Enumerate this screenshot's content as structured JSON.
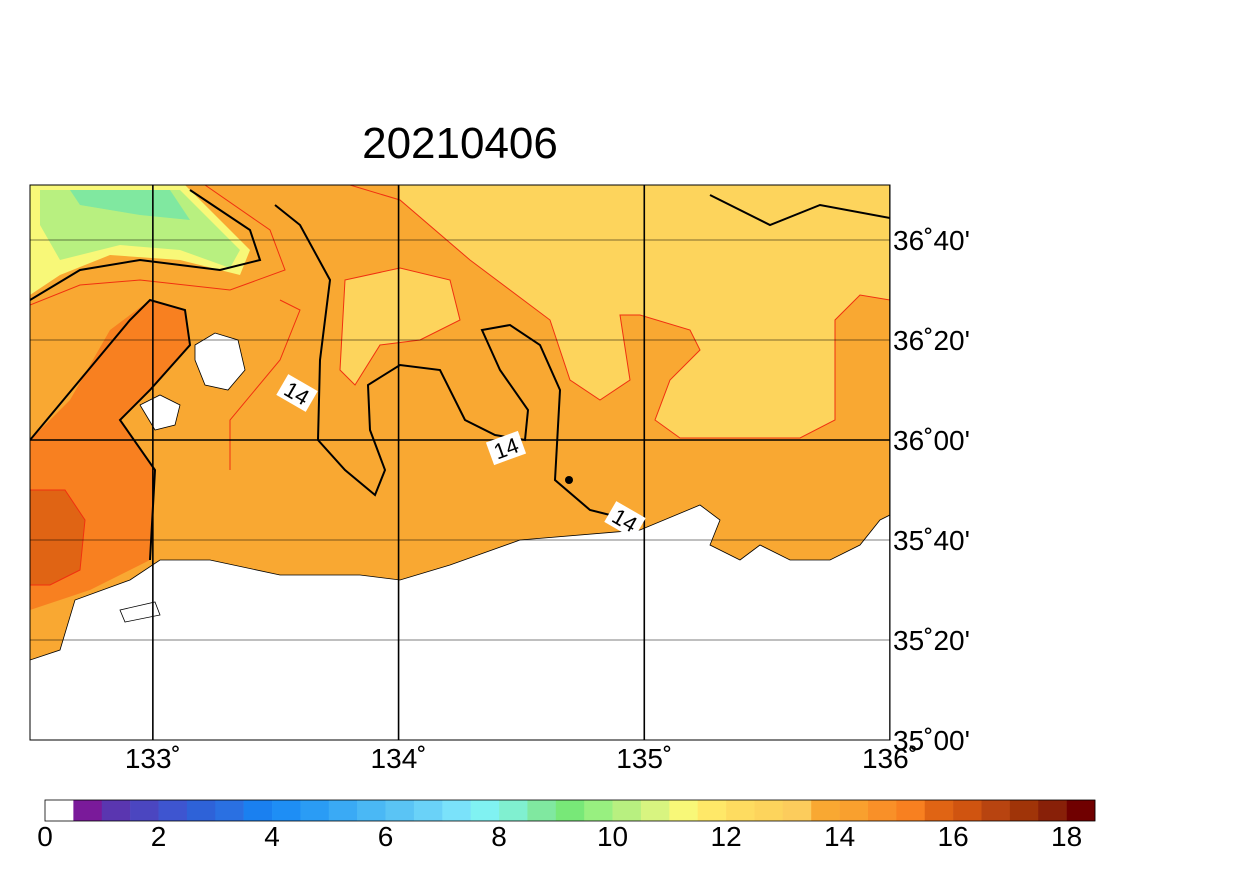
{
  "map": {
    "title": "20210406",
    "lonlim": [
      132.5,
      136
    ],
    "latlim": [
      35,
      36.85
    ],
    "lonticks": [
      {
        "value": 133,
        "label": "133˚"
      },
      {
        "value": 134,
        "label": "134˚"
      },
      {
        "value": 135,
        "label": "135˚"
      },
      {
        "value": 136,
        "label": "136˚"
      }
    ],
    "latticks": [
      {
        "value": 35,
        "label": "35˚00'"
      },
      {
        "value": 35.3333,
        "label": "35˚20'"
      },
      {
        "value": 35.6667,
        "label": "35˚40'"
      },
      {
        "value": 36,
        "label": "36˚00'"
      },
      {
        "value": 36.3333,
        "label": "36˚20'"
      },
      {
        "value": 36.6667,
        "label": "36˚40'"
      }
    ],
    "contour_labels": [
      "14",
      "14",
      "14"
    ]
  },
  "colorbar": {
    "range": [
      0,
      18.5
    ],
    "ticks": [
      0,
      2,
      4,
      6,
      8,
      10,
      12,
      14,
      16,
      18
    ],
    "colors": [
      "#ffffff",
      "#7a1a9a",
      "#5a36b0",
      "#4b46c0",
      "#3e55d0",
      "#2e62d8",
      "#2a70e2",
      "#1a80f0",
      "#1e8ef5",
      "#2a9cf5",
      "#3aaaf5",
      "#4ab8f5",
      "#5ac4f5",
      "#6ad2f8",
      "#7ae2fa",
      "#80f2f2",
      "#80f0d0",
      "#80e8a0",
      "#78e878",
      "#98f080",
      "#b8f080",
      "#d8f480",
      "#f8f878",
      "#ffe868",
      "#fedc60",
      "#fdd45c",
      "#fccc5c",
      "#f9a832",
      "#f9a02e",
      "#f99028",
      "#f88020",
      "#e06414",
      "#d05410",
      "#b84410",
      "#a03408",
      "#882008",
      "#700000"
    ]
  }
}
